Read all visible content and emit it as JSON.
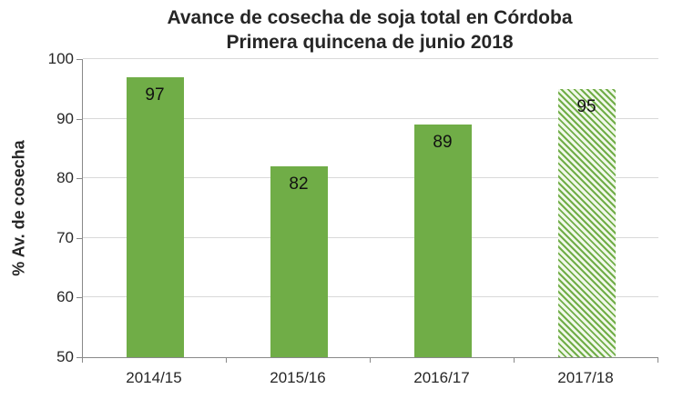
{
  "chart_data": {
    "type": "bar",
    "title": "Avance de cosecha de soja total en Córdoba",
    "subtitle": "Primera quincena de junio 2018",
    "categories": [
      "2014/15",
      "2015/16",
      "2016/17",
      "2017/18"
    ],
    "values": [
      97,
      82,
      89,
      95
    ],
    "bar_styles": [
      "solid",
      "solid",
      "solid",
      "hatched"
    ],
    "xlabel": "",
    "ylabel": "% Av. de cosecha",
    "ylim": [
      50,
      100
    ],
    "yticks": [
      50,
      60,
      70,
      80,
      90,
      100
    ],
    "grid": true,
    "legend": false,
    "colors": {
      "bar_fill": "#70AD47",
      "hatch_background": "#F1F8EA",
      "gridline": "#D9D9D9",
      "axis": "#898989",
      "text": "#262626"
    }
  }
}
